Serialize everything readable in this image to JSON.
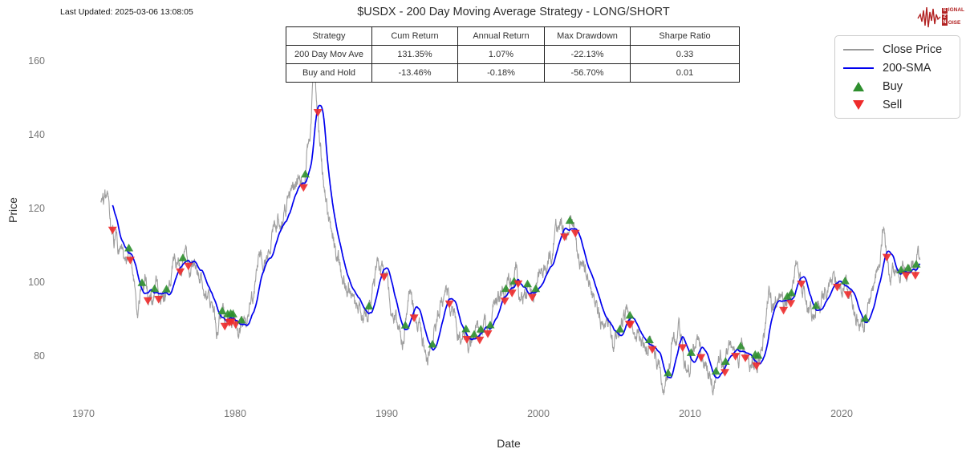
{
  "header": {
    "last_updated": "Last Updated: 2025-03-06 13:08:05",
    "title": "$USDX - 200 Day Moving Average Strategy - LONG/SHORT"
  },
  "logo": {
    "line1_boxed": "S",
    "line1_rest": "IGNAL",
    "line2_boxed": "2",
    "line3_boxed": "N",
    "line3_rest": "OISE",
    "color": "#b22222"
  },
  "stats_table": {
    "headers": [
      "Strategy",
      "Cum Return",
      "Annual Return",
      "Max Drawdown",
      "Sharpe Ratio"
    ],
    "rows": [
      [
        "200 Day Mov Ave",
        "131.35%",
        "1.07%",
        "-22.13%",
        "0.33"
      ],
      [
        "Buy and Hold",
        "-13.46%",
        "-0.18%",
        "-56.70%",
        "0.01"
      ]
    ]
  },
  "legend": {
    "items": [
      {
        "label": "Close Price",
        "marker": "line",
        "color": "#9a9a9a"
      },
      {
        "label": "200-SMA",
        "marker": "line",
        "color": "#0000ee"
      },
      {
        "label": "Buy",
        "marker": "triangle-up",
        "color": "#2e8f2e"
      },
      {
        "label": "Sell",
        "marker": "triangle-down",
        "color": "#ee2b2b"
      }
    ]
  },
  "chart_data": {
    "type": "line",
    "title": "$USDX - 200 Day Moving Average Strategy - LONG/SHORT",
    "xlabel": "Date",
    "ylabel": "Price",
    "x_ticks": [
      1970,
      1980,
      1990,
      2000,
      2010,
      2020
    ],
    "y_ticks": [
      80,
      100,
      120,
      140,
      160
    ],
    "xlim": [
      1967.8,
      2027.9
    ],
    "ylim": [
      66,
      170
    ],
    "grid": false,
    "legend_position": "upper right",
    "colors": {
      "close": "#9a9a9a",
      "sma": "#0000ee",
      "buy": "#2e8f2e",
      "sell": "#ee2b2b"
    },
    "noise_amplitude": 2.0,
    "sma_window_days": 200,
    "marker_rules": {
      "buy": "close crosses above 200-day SMA (triangle-up)",
      "sell": "close crosses below 200-day SMA (triangle-down)"
    },
    "series": [
      {
        "name": "Close Price",
        "type": "line",
        "color": "#9a9a9a",
        "points": [
          [
            1971.15,
            120.6
          ],
          [
            1971.45,
            120.4
          ],
          [
            1971.7,
            119.3
          ],
          [
            1971.95,
            114.8
          ],
          [
            1972.2,
            110.2
          ],
          [
            1972.5,
            108.8
          ],
          [
            1972.85,
            107.5
          ],
          [
            1973.05,
            103.5
          ],
          [
            1973.3,
            99.0
          ],
          [
            1973.55,
            92.6
          ],
          [
            1973.8,
            97.5
          ],
          [
            1974.05,
            99.5
          ],
          [
            1974.3,
            94.2
          ],
          [
            1974.55,
            95.5
          ],
          [
            1974.8,
            97.8
          ],
          [
            1975.1,
            98.6
          ],
          [
            1975.4,
            97.2
          ],
          [
            1975.7,
            100.8
          ],
          [
            1976.0,
            103.2
          ],
          [
            1976.4,
            104.8
          ],
          [
            1976.8,
            105.6
          ],
          [
            1977.1,
            105.2
          ],
          [
            1977.5,
            103.8
          ],
          [
            1977.9,
            100.6
          ],
          [
            1978.2,
            97.0
          ],
          [
            1978.5,
            93.5
          ],
          [
            1978.8,
            86.8
          ],
          [
            1979.0,
            88.8
          ],
          [
            1979.3,
            89.6
          ],
          [
            1979.55,
            87.2
          ],
          [
            1979.8,
            88.6
          ],
          [
            1980.05,
            90.2
          ],
          [
            1980.3,
            85.6
          ],
          [
            1980.6,
            86.4
          ],
          [
            1980.9,
            90.8
          ],
          [
            1981.2,
            95.5
          ],
          [
            1981.55,
            106.8
          ],
          [
            1981.85,
            103.6
          ],
          [
            1982.1,
            109.2
          ],
          [
            1982.45,
            112.8
          ],
          [
            1982.8,
            117.6
          ],
          [
            1983.1,
            115.4
          ],
          [
            1983.45,
            119.8
          ],
          [
            1983.75,
            122.6
          ],
          [
            1984.0,
            126.2
          ],
          [
            1984.25,
            129.8
          ],
          [
            1984.5,
            127.4
          ],
          [
            1984.75,
            134.5
          ],
          [
            1985.0,
            144.5
          ],
          [
            1985.15,
            158.0
          ],
          [
            1985.22,
            163.8
          ],
          [
            1985.35,
            152.0
          ],
          [
            1985.55,
            141.5
          ],
          [
            1985.75,
            132.0
          ],
          [
            1985.95,
            124.5
          ],
          [
            1986.2,
            117.5
          ],
          [
            1986.5,
            112.5
          ],
          [
            1986.8,
            108.0
          ],
          [
            1987.1,
            102.5
          ],
          [
            1987.4,
            99.5
          ],
          [
            1987.7,
            98.5
          ],
          [
            1987.95,
            90.5
          ],
          [
            1988.2,
            92.5
          ],
          [
            1988.45,
            87.5
          ],
          [
            1988.7,
            90.0
          ],
          [
            1988.95,
            92.5
          ],
          [
            1989.2,
            98.5
          ],
          [
            1989.45,
            104.0
          ],
          [
            1989.7,
            101.5
          ],
          [
            1989.95,
            99.0
          ],
          [
            1990.2,
            94.5
          ],
          [
            1990.5,
            91.5
          ],
          [
            1990.8,
            87.5
          ],
          [
            1991.05,
            82.0
          ],
          [
            1991.35,
            93.0
          ],
          [
            1991.55,
            96.5
          ],
          [
            1991.8,
            90.0
          ],
          [
            1992.1,
            89.5
          ],
          [
            1992.4,
            84.0
          ],
          [
            1992.7,
            78.5
          ],
          [
            1992.95,
            82.5
          ],
          [
            1993.2,
            87.5
          ],
          [
            1993.6,
            93.5
          ],
          [
            1993.9,
            94.0
          ],
          [
            1994.15,
            95.0
          ],
          [
            1994.5,
            89.5
          ],
          [
            1994.85,
            87.5
          ],
          [
            1995.1,
            85.5
          ],
          [
            1995.35,
            81.0
          ],
          [
            1995.65,
            84.5
          ],
          [
            1995.95,
            84.5
          ],
          [
            1996.3,
            86.5
          ],
          [
            1996.7,
            87.5
          ],
          [
            1997.05,
            92.0
          ],
          [
            1997.4,
            95.0
          ],
          [
            1997.75,
            96.0
          ],
          [
            1998.0,
            99.5
          ],
          [
            1998.3,
            98.0
          ],
          [
            1998.6,
            101.5
          ],
          [
            1998.8,
            93.5
          ],
          [
            1999.1,
            96.0
          ],
          [
            1999.4,
            99.5
          ],
          [
            1999.7,
            97.5
          ],
          [
            2000.0,
            100.5
          ],
          [
            2000.3,
            104.5
          ],
          [
            2000.6,
            106.0
          ],
          [
            2000.9,
            110.0
          ],
          [
            2001.15,
            112.5
          ],
          [
            2001.5,
            116.5
          ],
          [
            2001.7,
            113.0
          ],
          [
            2001.95,
            115.5
          ],
          [
            2002.1,
            118.5
          ],
          [
            2002.35,
            116.0
          ],
          [
            2002.6,
            108.0
          ],
          [
            2002.9,
            106.5
          ],
          [
            2003.2,
            101.5
          ],
          [
            2003.5,
            96.0
          ],
          [
            2003.8,
            93.0
          ],
          [
            2004.1,
            88.5
          ],
          [
            2004.4,
            90.5
          ],
          [
            2004.7,
            88.0
          ],
          [
            2004.95,
            83.5
          ],
          [
            2005.2,
            84.5
          ],
          [
            2005.55,
            89.0
          ],
          [
            2005.85,
            91.5
          ],
          [
            2006.1,
            89.5
          ],
          [
            2006.45,
            85.5
          ],
          [
            2006.75,
            86.5
          ],
          [
            2007.05,
            84.5
          ],
          [
            2007.35,
            82.0
          ],
          [
            2007.7,
            80.0
          ],
          [
            2007.95,
            76.0
          ],
          [
            2008.2,
            72.0
          ],
          [
            2008.45,
            72.5
          ],
          [
            2008.65,
            76.0
          ],
          [
            2008.85,
            86.5
          ],
          [
            2009.05,
            84.0
          ],
          [
            2009.25,
            89.0
          ],
          [
            2009.55,
            79.5
          ],
          [
            2009.85,
            74.8
          ],
          [
            2010.1,
            80.0
          ],
          [
            2010.45,
            86.5
          ],
          [
            2010.7,
            82.0
          ],
          [
            2010.95,
            79.5
          ],
          [
            2011.15,
            77.5
          ],
          [
            2011.4,
            73.5
          ],
          [
            2011.7,
            74.5
          ],
          [
            2011.95,
            80.0
          ],
          [
            2012.2,
            79.0
          ],
          [
            2012.5,
            82.5
          ],
          [
            2012.8,
            79.5
          ],
          [
            2013.1,
            80.5
          ],
          [
            2013.4,
            83.0
          ],
          [
            2013.7,
            80.0
          ],
          [
            2013.95,
            80.5
          ],
          [
            2014.3,
            79.5
          ],
          [
            2014.6,
            81.5
          ],
          [
            2014.9,
            88.0
          ],
          [
            2015.2,
            98.5
          ],
          [
            2015.4,
            94.0
          ],
          [
            2015.7,
            96.5
          ],
          [
            2015.95,
            98.5
          ],
          [
            2016.2,
            94.5
          ],
          [
            2016.5,
            95.0
          ],
          [
            2016.8,
            98.5
          ],
          [
            2017.0,
            102.5
          ],
          [
            2017.3,
            100.0
          ],
          [
            2017.65,
            93.0
          ],
          [
            2017.95,
            92.5
          ],
          [
            2018.15,
            89.5
          ],
          [
            2018.45,
            94.0
          ],
          [
            2018.75,
            95.0
          ],
          [
            2019.05,
            96.0
          ],
          [
            2019.35,
            97.5
          ],
          [
            2019.65,
            98.5
          ],
          [
            2019.95,
            97.5
          ],
          [
            2020.2,
            102.0
          ],
          [
            2020.45,
            99.5
          ],
          [
            2020.7,
            93.5
          ],
          [
            2020.95,
            90.5
          ],
          [
            2021.1,
            90.0
          ],
          [
            2021.4,
            91.0
          ],
          [
            2021.7,
            93.0
          ],
          [
            2021.95,
            96.0
          ],
          [
            2022.15,
            99.0
          ],
          [
            2022.45,
            104.5
          ],
          [
            2022.7,
            113.0
          ],
          [
            2022.78,
            114.0
          ],
          [
            2022.95,
            109.0
          ],
          [
            2023.1,
            102.5
          ],
          [
            2023.4,
            101.5
          ],
          [
            2023.7,
            103.5
          ],
          [
            2023.95,
            105.5
          ],
          [
            2024.15,
            103.0
          ],
          [
            2024.45,
            105.5
          ],
          [
            2024.7,
            103.5
          ],
          [
            2024.85,
            100.8
          ],
          [
            2025.0,
            108.5
          ],
          [
            2025.05,
            109.8
          ],
          [
            2025.18,
            104.2
          ]
        ]
      },
      {
        "name": "200-SMA",
        "type": "derived",
        "derivation": "trailing 200-day moving average of Close Price",
        "color": "#0000ee"
      }
    ]
  }
}
